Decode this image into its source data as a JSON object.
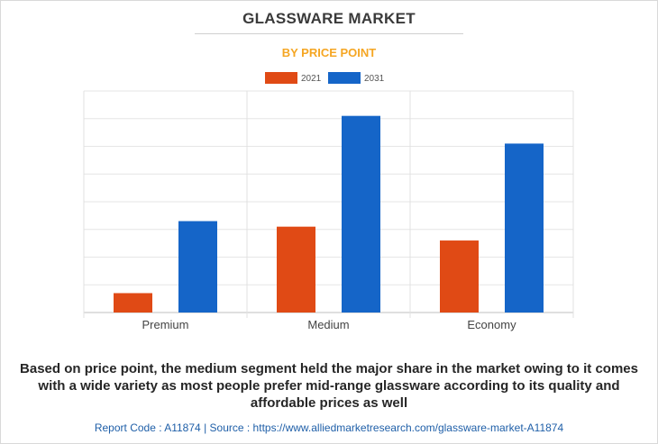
{
  "title": "GLASSWARE MARKET",
  "subtitle": "BY PRICE POINT",
  "caption": "Based on price point, the medium segment held the major share in the market owing to it comes with a wide variety as most people prefer mid-range glassware according to its quality and affordable prices as well",
  "footer": {
    "report_code": "Report Code : A11874",
    "separator": "|",
    "source": "Source : https://www.alliedmarketresearch.com/glassware-market-A11874"
  },
  "chart_data": {
    "type": "bar",
    "categories": [
      "Premium",
      "Medium",
      "Economy"
    ],
    "series": [
      {
        "name": "2021",
        "color": "#e04a15",
        "values": [
          0.7,
          3.1,
          2.6
        ]
      },
      {
        "name": "2031",
        "color": "#1565c8",
        "values": [
          3.3,
          7.1,
          6.1
        ]
      }
    ],
    "ylim": [
      0,
      8
    ],
    "y_tick_labels_shown": false,
    "grid": true,
    "legend": "top-center"
  }
}
